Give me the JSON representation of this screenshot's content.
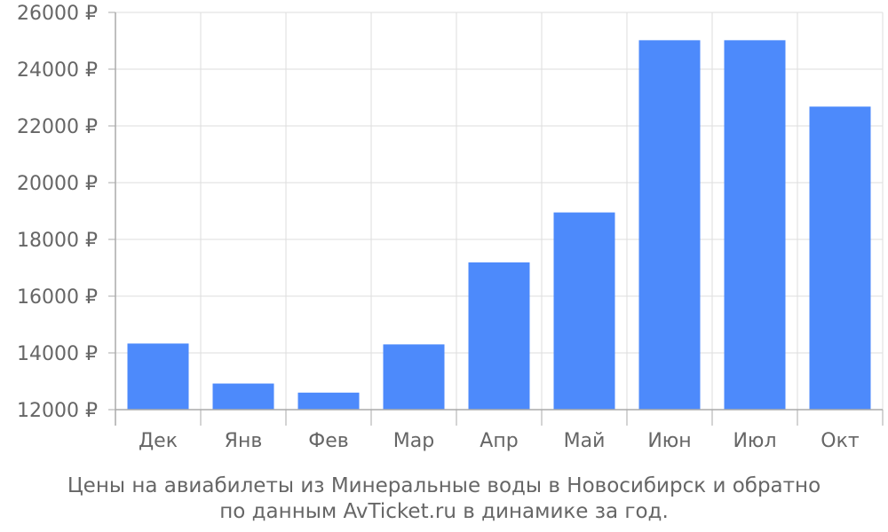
{
  "chart_data": {
    "type": "bar",
    "categories": [
      "Дек",
      "Янв",
      "Фев",
      "Мар",
      "Апр",
      "Май",
      "Июн",
      "Июл",
      "Окт"
    ],
    "values": [
      14330,
      12920,
      12600,
      14300,
      17190,
      18950,
      25020,
      25020,
      22680
    ],
    "y_ticks": [
      12000,
      14000,
      16000,
      18000,
      20000,
      22000,
      24000,
      26000
    ],
    "y_tick_labels": [
      "12000 ₽",
      "14000 ₽",
      "16000 ₽",
      "18000 ₽",
      "20000 ₽",
      "22000 ₽",
      "24000 ₽",
      "26000 ₽"
    ],
    "ylim": [
      12000,
      26000
    ],
    "grid": true,
    "legend": "none",
    "bar_color": "#4d8afb",
    "grid_color": "#dddddd",
    "axis_color": "#aaaaaa",
    "text_color": "#666666"
  },
  "caption": {
    "line1": "Цены на авиабилеты из Минеральные воды в Новосибирск и обратно",
    "line2": "по данным AvTicket.ru в динамике за год."
  }
}
